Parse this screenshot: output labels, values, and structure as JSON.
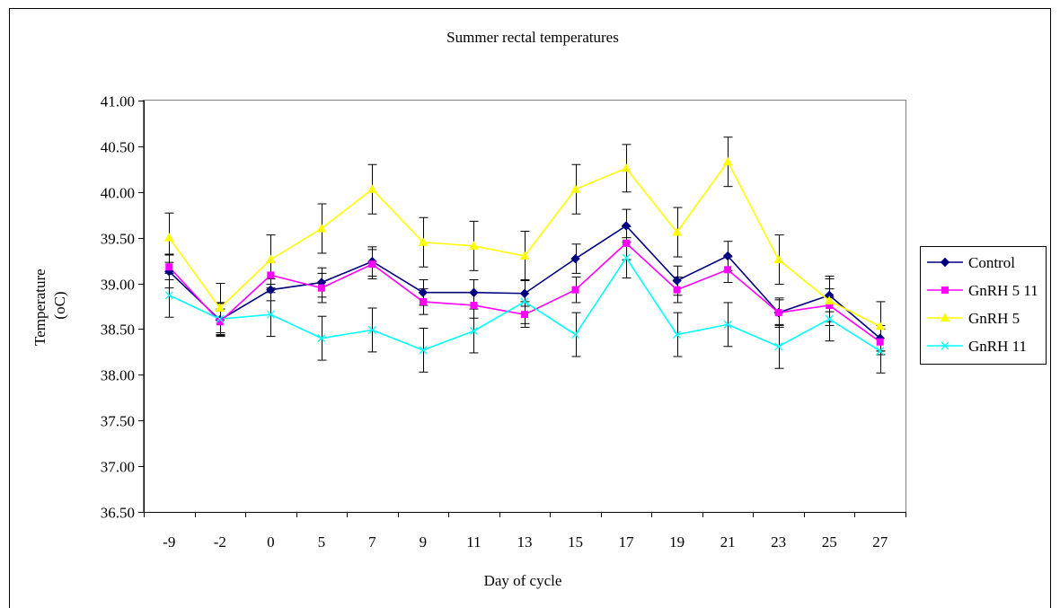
{
  "chart_data": {
    "type": "line",
    "title": "Summer rectal temperatures",
    "xlabel": "Day of cycle",
    "ylabel_lines": [
      "Temperature",
      "(oC)"
    ],
    "categories": [
      "-9",
      "-2",
      "0",
      "5",
      "7",
      "9",
      "11",
      "13",
      "15",
      "17",
      "19",
      "21",
      "23",
      "25",
      "27"
    ],
    "ylim": [
      36.5,
      41.0
    ],
    "ytick_step": 0.5,
    "ytick_labels": [
      "36.50",
      "37.00",
      "37.50",
      "38.00",
      "38.50",
      "39.00",
      "39.50",
      "40.00",
      "40.50",
      "41.00"
    ],
    "grid": false,
    "legend_position": "right",
    "series": [
      {
        "name": "Control",
        "color": "#000080",
        "marker": "diamond",
        "values": [
          39.13,
          38.6,
          38.93,
          39.01,
          39.24,
          38.9,
          38.9,
          38.89,
          39.27,
          39.63,
          39.03,
          39.3,
          38.68,
          38.87,
          38.4
        ],
        "errors": [
          0.18,
          0.18,
          0.12,
          0.16,
          0.16,
          0.14,
          0.14,
          0.14,
          0.16,
          0.18,
          0.16,
          0.16,
          0.16,
          0.18,
          0.14
        ]
      },
      {
        "name": "GnRH 5 11",
        "color": "#FF00FF",
        "marker": "square",
        "values": [
          39.18,
          38.58,
          39.09,
          38.95,
          39.21,
          38.8,
          38.76,
          38.66,
          38.93,
          39.44,
          38.93,
          39.15,
          38.68,
          38.76,
          38.36
        ],
        "errors": [
          0.14,
          0.14,
          0.14,
          0.16,
          0.16,
          0.14,
          0.14,
          0.14,
          0.14,
          0.18,
          0.14,
          0.14,
          0.14,
          0.18,
          0.14
        ]
      },
      {
        "name": "GnRH 5",
        "color": "#FFFF00",
        "marker": "triangle",
        "values": [
          39.5,
          38.73,
          39.26,
          39.6,
          40.03,
          39.45,
          39.41,
          39.3,
          40.03,
          40.26,
          39.56,
          40.33,
          39.26,
          38.81,
          38.53
        ],
        "errors": [
          0.27,
          0.27,
          0.27,
          0.27,
          0.27,
          0.27,
          0.27,
          0.27,
          0.27,
          0.26,
          0.27,
          0.27,
          0.27,
          0.27,
          0.27
        ]
      },
      {
        "name": "GnRH 11",
        "color": "#00FFFF",
        "marker": "x",
        "values": [
          38.87,
          38.61,
          38.66,
          38.4,
          38.49,
          38.27,
          38.48,
          38.8,
          38.44,
          39.28,
          38.44,
          38.55,
          38.31,
          38.61,
          38.26
        ],
        "errors": [
          0.24,
          0.18,
          0.24,
          0.24,
          0.24,
          0.24,
          0.24,
          0.24,
          0.24,
          0.22,
          0.24,
          0.24,
          0.24,
          0.24,
          0.24
        ]
      }
    ]
  }
}
